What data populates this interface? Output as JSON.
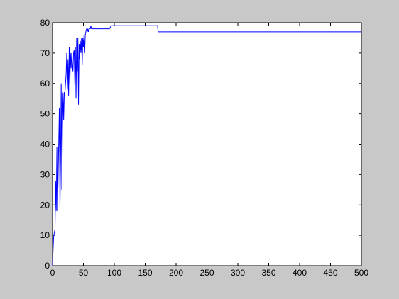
{
  "figure": {
    "background": "#c8c8c8",
    "axes_background": "#ffffff",
    "line_color": "#0000ff"
  },
  "chart_data": {
    "type": "line",
    "title": "",
    "xlabel": "",
    "ylabel": "",
    "xlim": [
      0,
      500
    ],
    "ylim": [
      0,
      80
    ],
    "xticks": [
      0,
      50,
      100,
      150,
      200,
      250,
      300,
      350,
      400,
      450,
      500
    ],
    "yticks": [
      0,
      10,
      20,
      30,
      40,
      50,
      60,
      70,
      80
    ],
    "grid": false,
    "legend": "none",
    "series": [
      {
        "x": [
          0,
          1,
          2,
          3,
          4,
          5,
          6,
          7,
          8,
          9,
          10,
          11,
          12,
          13,
          14,
          15,
          16,
          17,
          18,
          19,
          20,
          21,
          22,
          23,
          24,
          25,
          26,
          27,
          28,
          29,
          30,
          31,
          32,
          33,
          34,
          35,
          36,
          37,
          38,
          39,
          40,
          41,
          42,
          43,
          44,
          45,
          46,
          47,
          48,
          49,
          50,
          51,
          52,
          53,
          54,
          55,
          56,
          57,
          58,
          59,
          60,
          61,
          62,
          63,
          64,
          65,
          66,
          67,
          68,
          69,
          70,
          71,
          72,
          73,
          74,
          75,
          80,
          90,
          92,
          95,
          100,
          105,
          150,
          170,
          171,
          200,
          250,
          300,
          350,
          400,
          450,
          500
        ],
        "y": [
          0,
          6,
          10,
          11,
          12,
          28,
          18,
          39,
          18,
          29,
          40,
          52,
          19,
          35,
          60,
          25,
          45,
          57,
          48,
          57,
          57,
          60,
          63,
          70,
          58,
          68,
          56,
          72,
          60,
          70,
          65,
          70,
          66,
          64,
          70,
          71,
          60,
          72,
          55,
          75,
          64,
          75,
          53,
          73,
          68,
          74,
          70,
          75,
          66,
          75,
          72,
          76,
          70,
          76,
          77,
          78,
          77,
          78,
          77,
          78,
          78,
          78,
          79,
          78,
          78,
          78,
          78,
          78,
          78,
          78,
          78,
          78,
          78,
          78,
          78,
          78,
          78,
          78,
          78,
          79,
          79,
          79,
          79,
          79,
          77,
          77,
          77,
          77,
          77,
          77,
          77,
          77
        ]
      }
    ]
  }
}
